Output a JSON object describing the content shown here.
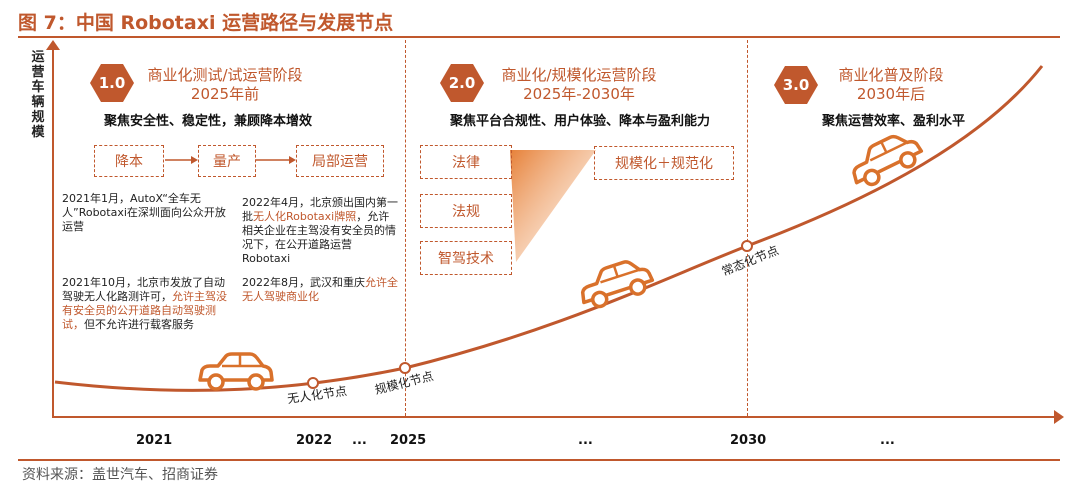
{
  "title": "图 7：中国 Robotaxi 运营路径与发展节点",
  "source": "资料来源：盖世汽车、招商证券",
  "y_axis_label": "运营车辆规模",
  "x_labels": [
    "2021",
    "2022",
    "...",
    "2025",
    "...",
    "2030",
    "..."
  ],
  "phases": [
    {
      "num": "1.0",
      "title": "商业化测试/试运营阶段",
      "period": "2025年前",
      "focus": "聚焦安全性、稳定性，兼顾降本增效"
    },
    {
      "num": "2.0",
      "title": "商业化/规模化运营阶段",
      "period": "2025年-2030年",
      "focus": "聚焦平台合规性、用户体验、降本与盈利能力"
    },
    {
      "num": "3.0",
      "title": "商业化普及阶段",
      "period": "2030年后",
      "focus": "聚焦运营效率、盈利水平"
    }
  ],
  "flow": [
    "降本",
    "量产",
    "局部运营"
  ],
  "factors": [
    "法律",
    "法规",
    "智驾技术"
  ],
  "scale_box": "规模化＋规范化",
  "annotations": {
    "a1": "2021年1月，AutoX“全车无人”Robotaxi在深圳面向公众开放运营",
    "a2_pre": "2021年10月，北京市发放了自动驾驶无人化路测许可，",
    "a2_hl": "允许主驾没有安全员的公开道路自动驾驶测试，",
    "a2_post": "但不允许进行载客服务",
    "a3_pre": "2022年4月，北京颁出国内第一批",
    "a3_hl": "无人化Robotaxi牌照",
    "a3_post": "，允许相关企业在主驾没有安全员的情况下，在公开道路运营Robotaxi",
    "a4_pre": "2022年8月，武汉和重庆",
    "a4_hl": "允许全无人驾驶商业化"
  },
  "milestones": [
    "无人化节点",
    "规模化节点",
    "常态化节点"
  ],
  "colors": {
    "accent": "#c0582d",
    "text": "#222222"
  },
  "icons": [
    "car-icon",
    "car-icon",
    "car-icon"
  ]
}
